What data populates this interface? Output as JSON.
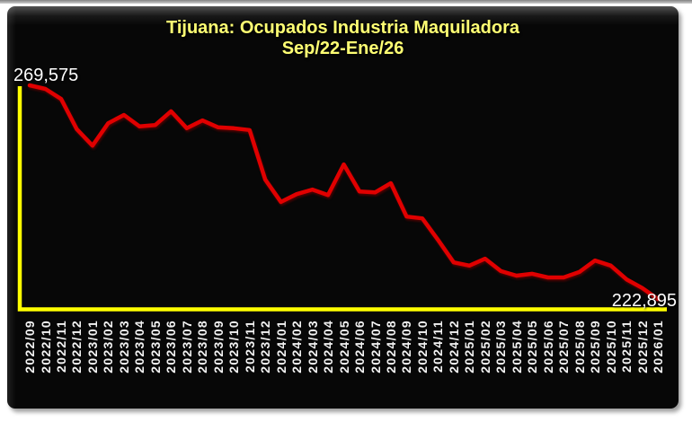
{
  "colors": {
    "panel_background": "#070707",
    "title": "#ffff73",
    "line": "#e00000",
    "axis": "#ffff00",
    "value_label": "#ffffff",
    "tick_label": "#f2f2f2",
    "outer_background": "#ffffff"
  },
  "labels": {
    "first_value": "269,575",
    "last_value": "222,895"
  },
  "chart_data": {
    "type": "line",
    "title": "Tijuana: Ocupados Industria Maquiladora",
    "subtitle": "Sep/22-Ene/26",
    "xlabel": "",
    "ylabel": "",
    "legend": "none",
    "grid": false,
    "ylim": [
      222895,
      269575
    ],
    "categories": [
      "2022/09",
      "2022/10",
      "2022/11",
      "2022/12",
      "2023/01",
      "2023/02",
      "2023/03",
      "2023/04",
      "2023/05",
      "2023/06",
      "2023/07",
      "2023/08",
      "2023/09",
      "2023/10",
      "2023/11",
      "2023/12",
      "2024/01",
      "2024/02",
      "2024/03",
      "2024/04",
      "2024/05",
      "2024/06",
      "2024/07",
      "2024/08",
      "2024/09",
      "2024/10",
      "2024/11",
      "2024/12",
      "2025/01",
      "2025/02",
      "2025/03",
      "2025/04",
      "2025/05",
      "2025/06",
      "2025/07",
      "2025/08",
      "2025/09",
      "2025/10",
      "2025/11",
      "2025/12",
      "2026/01"
    ],
    "values": [
      269575,
      268800,
      266600,
      260000,
      256400,
      261300,
      263100,
      260600,
      260900,
      263900,
      260200,
      261900,
      260400,
      260200,
      259800,
      249000,
      244100,
      245800,
      246800,
      245600,
      252300,
      246400,
      246200,
      248200,
      240900,
      240500,
      235800,
      230900,
      230200,
      231700,
      229000,
      228000,
      228400,
      227600,
      227600,
      228800,
      231300,
      230200,
      227200,
      225300,
      222895
    ],
    "point_labels": {
      "first": "269,575",
      "last": "222,895"
    }
  }
}
